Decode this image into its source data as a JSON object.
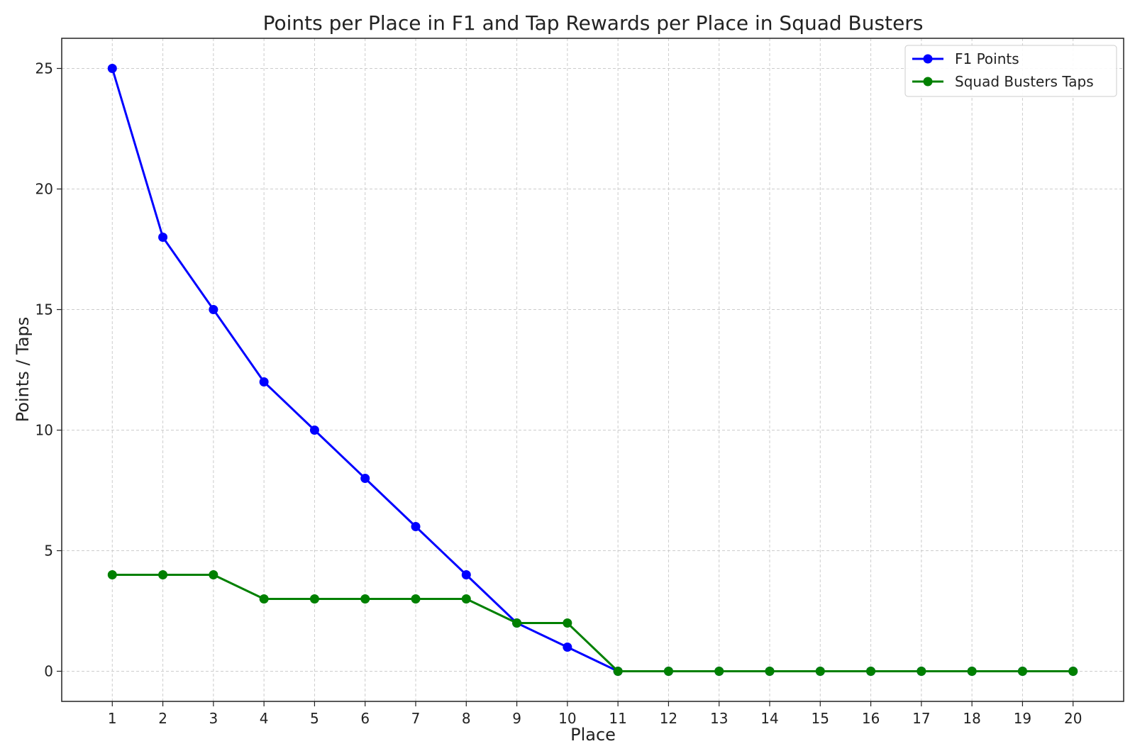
{
  "chart_data": {
    "type": "line",
    "title": "Points per Place in F1 and Tap Rewards per Place in Squad Busters",
    "xlabel": "Place",
    "ylabel": "Points / Taps",
    "x": [
      1,
      2,
      3,
      4,
      5,
      6,
      7,
      8,
      9,
      10,
      11,
      12,
      13,
      14,
      15,
      16,
      17,
      18,
      19,
      20
    ],
    "xlim": [
      0,
      21
    ],
    "ylim": [
      -1.25,
      26.25
    ],
    "yticks": [
      0,
      5,
      10,
      15,
      20,
      25
    ],
    "grid": true,
    "legend_position": "top-right",
    "series": [
      {
        "name": "F1 Points",
        "color": "#0000ff",
        "values": [
          25,
          18,
          15,
          12,
          10,
          8,
          6,
          4,
          2,
          1,
          0,
          0,
          0,
          0,
          0,
          0,
          0,
          0,
          0,
          0
        ]
      },
      {
        "name": "Squad Busters Taps",
        "color": "#008000",
        "values": [
          4,
          4,
          4,
          3,
          3,
          3,
          3,
          3,
          2,
          2,
          0,
          0,
          0,
          0,
          0,
          0,
          0,
          0,
          0,
          0
        ]
      }
    ]
  }
}
